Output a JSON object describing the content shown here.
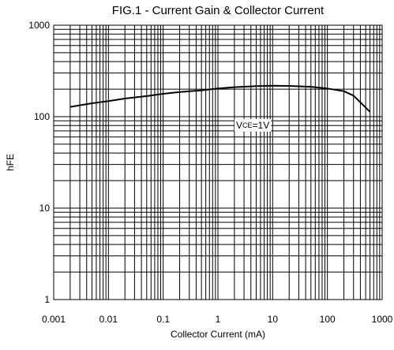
{
  "chart_data": {
    "type": "line",
    "title": "FIG.1 - Current Gain & Collector Current",
    "xlabel": "Collector Current (mA)",
    "ylabel": "hFE",
    "x_scale": "log",
    "y_scale": "log",
    "xlim": [
      0.001,
      1000
    ],
    "ylim": [
      1,
      1000
    ],
    "grid": true,
    "x_ticks": [
      "0.001",
      "0.01",
      "0.1",
      "1",
      "10",
      "100",
      "1000"
    ],
    "y_ticks": [
      "1",
      "10",
      "100",
      "1000"
    ],
    "annotation": {
      "prefix": "V",
      "subscript": "CE",
      "suffix": "=1V"
    },
    "series": [
      {
        "x": [
          0.002,
          0.005,
          0.01,
          0.02,
          0.05,
          0.1,
          0.2,
          0.5,
          1,
          2,
          5,
          10,
          20,
          50,
          100,
          200,
          300,
          600
        ],
        "y": [
          128,
          140,
          148,
          158,
          168,
          178,
          186,
          194,
          203,
          210,
          216,
          218,
          217,
          212,
          203,
          190,
          170,
          113
        ]
      }
    ]
  }
}
